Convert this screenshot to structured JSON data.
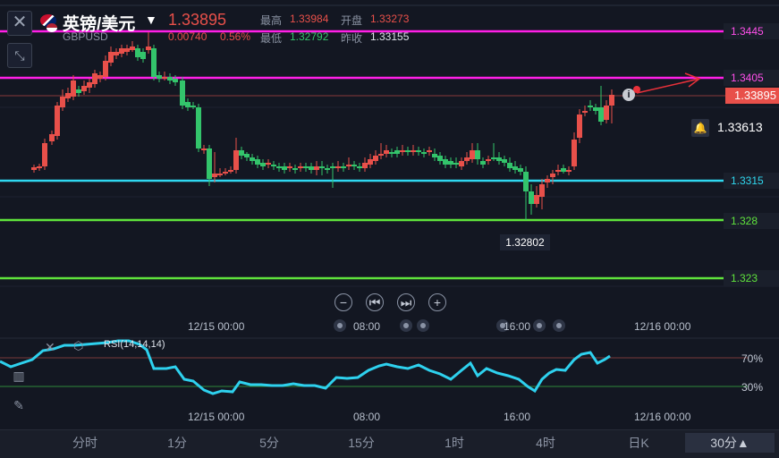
{
  "header": {
    "symbol_name": "英镑/美元",
    "symbol_code": "GBPUSD",
    "price": "1.33895",
    "change": "0.00740",
    "change_pct": "0.56%",
    "high_label": "最高",
    "high_value": "1.33984",
    "open_label": "开盘",
    "open_value": "1.33273",
    "low_label": "最低",
    "low_value": "1.32792",
    "prev_close_label": "昨收",
    "prev_close_value": "1.33155"
  },
  "levels": {
    "l1": "1.3445",
    "l2": "1.3405",
    "l3": "1.3315",
    "l4": "1.328",
    "l5": "1.323",
    "current": "1.33895",
    "reference": "1.33613",
    "low_marker": "1.32802"
  },
  "time_axis": {
    "t1": "12/15 00:00",
    "t2": "08:00",
    "t3": "16:00",
    "t4": "12/16 00:00"
  },
  "rsi": {
    "title": "RSI(14,14,14)",
    "upper": "70%",
    "lower": "30%"
  },
  "tabs": [
    "分时",
    "1分",
    "5分",
    "15分",
    "1时",
    "4时",
    "日K",
    "30分▲"
  ],
  "colors": {
    "up": "#e8504a",
    "down": "#33c46b",
    "magenta": "#ff1fe6",
    "cyan": "#2fd7ef",
    "green": "#5fe33c"
  },
  "icons": {
    "close": "close-icon",
    "shrink": "shrink-icon",
    "zoom_out": "zoom-out-icon",
    "step_back": "step-back-icon",
    "step_forward": "step-forward-icon",
    "zoom_in": "zoom-in-icon",
    "bell": "bell-icon",
    "info": "info-icon",
    "layers": "layers-icon",
    "pencil": "pencil-icon",
    "indicator": "indicator-icon"
  }
}
